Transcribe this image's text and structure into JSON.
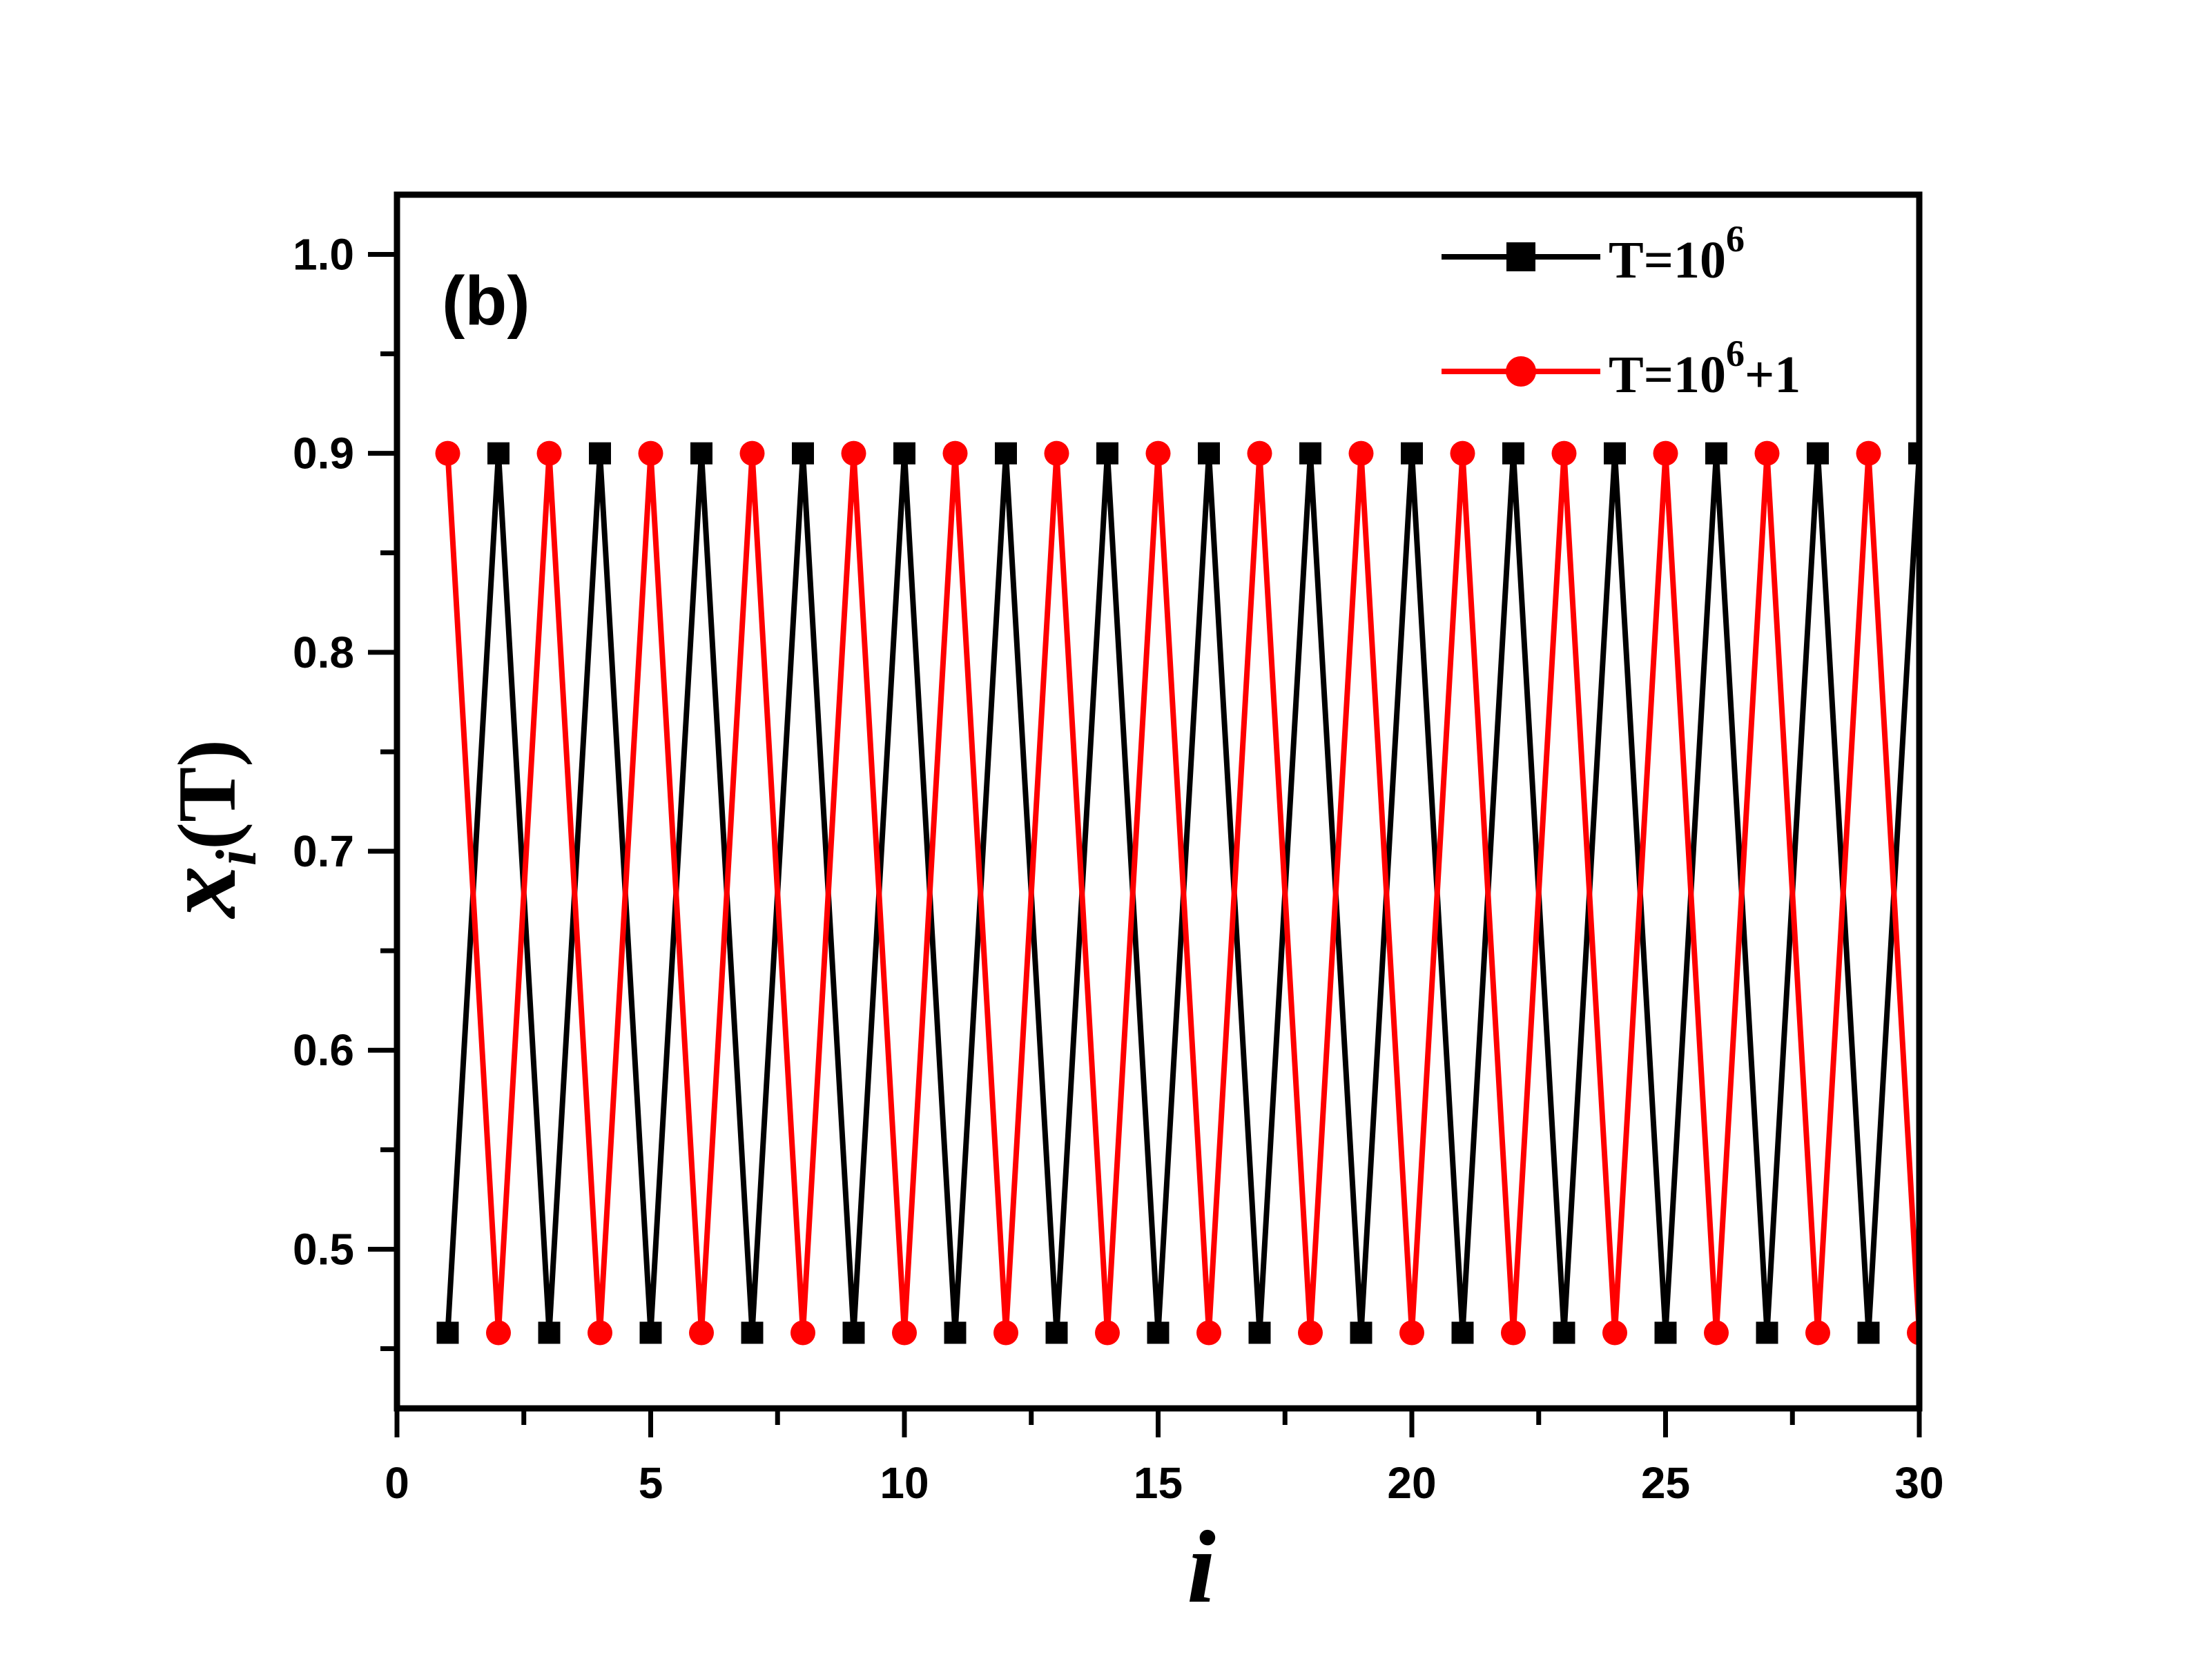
{
  "chart_data": {
    "type": "line",
    "panel_label": "(b)",
    "xlabel": "i",
    "ylabel": {
      "main": "x",
      "subscript": "i",
      "suffix": "(T)"
    },
    "xlim": [
      0,
      30
    ],
    "ylim": [
      0.42,
      1.03
    ],
    "xticks": [
      0,
      5,
      10,
      15,
      20,
      25,
      30
    ],
    "xtick_labels": [
      "0",
      "5",
      "10",
      "15",
      "20",
      "25",
      "30"
    ],
    "yticks": [
      0.5,
      0.6,
      0.7,
      0.8,
      0.9,
      1.0
    ],
    "ytick_labels": [
      "0.5",
      "0.6",
      "0.7",
      "0.8",
      "0.9",
      "1.0"
    ],
    "legend_position": "top-right",
    "x": [
      1,
      2,
      3,
      4,
      5,
      6,
      7,
      8,
      9,
      10,
      11,
      12,
      13,
      14,
      15,
      16,
      17,
      18,
      19,
      20,
      21,
      22,
      23,
      24,
      25,
      26,
      27,
      28,
      29,
      30
    ],
    "series": [
      {
        "name_main": "T=10",
        "name_sup": "6",
        "name_tail": "",
        "color": "#000000",
        "marker": "square",
        "values": [
          0.458,
          0.9,
          0.458,
          0.9,
          0.458,
          0.9,
          0.458,
          0.9,
          0.458,
          0.9,
          0.458,
          0.9,
          0.458,
          0.9,
          0.458,
          0.9,
          0.458,
          0.9,
          0.458,
          0.9,
          0.458,
          0.9,
          0.458,
          0.9,
          0.458,
          0.9,
          0.458,
          0.9,
          0.458,
          0.9
        ]
      },
      {
        "name_main": "T=10",
        "name_sup": "6",
        "name_tail": "+1",
        "color": "#ff0000",
        "marker": "circle",
        "values": [
          0.9,
          0.458,
          0.9,
          0.458,
          0.9,
          0.458,
          0.9,
          0.458,
          0.9,
          0.458,
          0.9,
          0.458,
          0.9,
          0.458,
          0.9,
          0.458,
          0.9,
          0.458,
          0.9,
          0.458,
          0.9,
          0.458,
          0.9,
          0.458,
          0.9,
          0.458,
          0.9,
          0.458,
          0.9,
          0.458
        ]
      }
    ]
  }
}
